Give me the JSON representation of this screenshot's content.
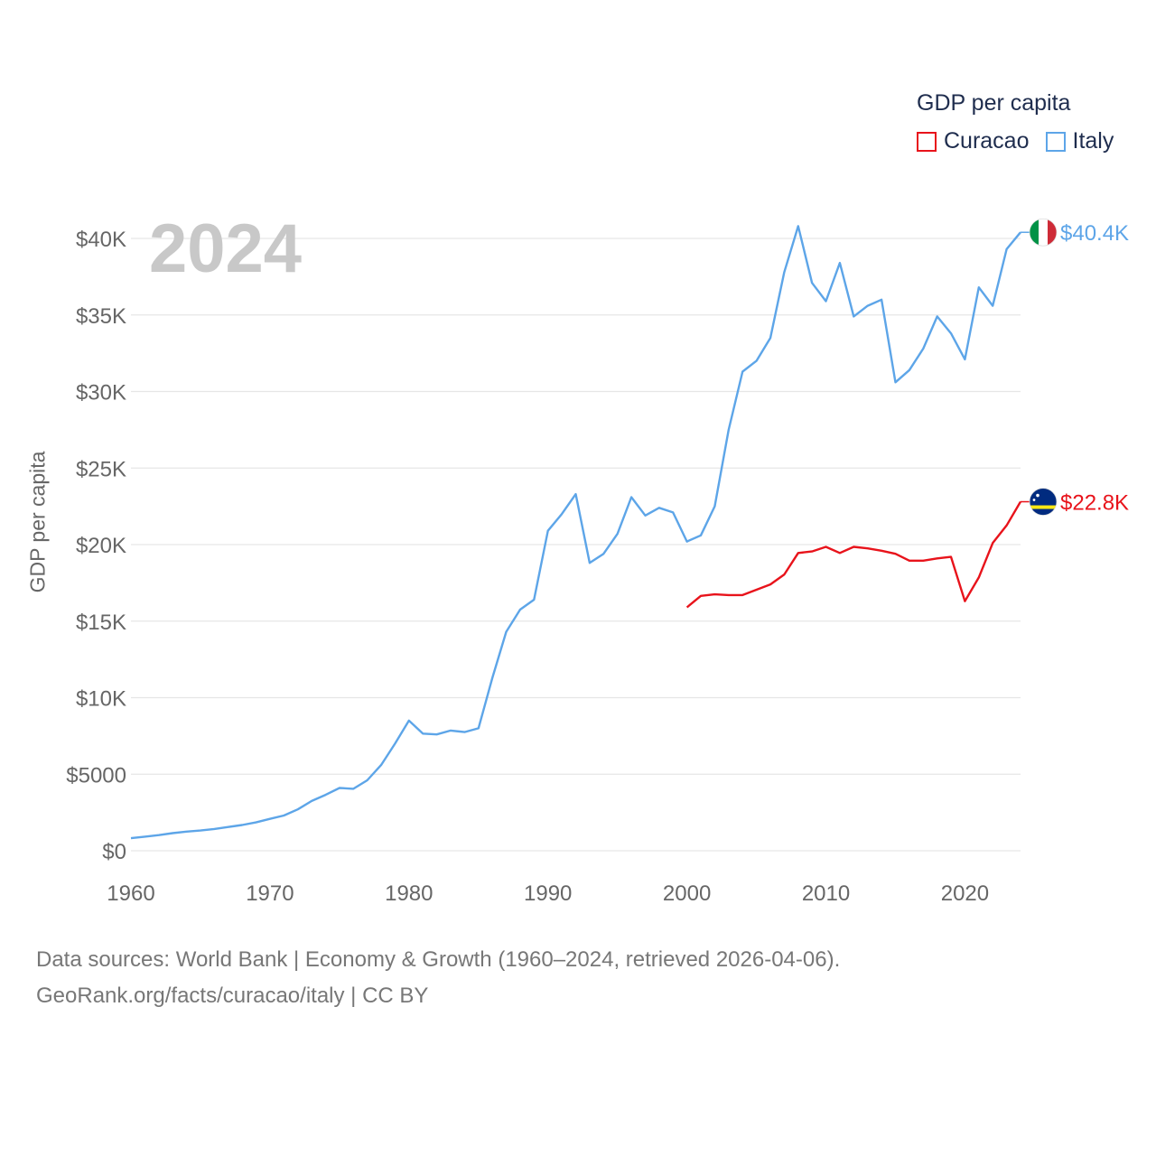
{
  "legend": {
    "title": "GDP per capita",
    "items": [
      {
        "label": "Curacao",
        "color": "#e8131b"
      },
      {
        "label": "Italy",
        "color": "#5da5e8"
      }
    ]
  },
  "year_display": "2024",
  "footer": {
    "line1": "Data sources: World Bank | Economy & Growth (1960–2024, retrieved 2026-04-06).",
    "line2": "GeoRank.org/facts/curacao/italy | CC BY"
  },
  "chart_data": {
    "type": "line",
    "title": "",
    "xlabel": "",
    "ylabel": "GDP per capita",
    "xlim": [
      1960,
      2024
    ],
    "ylim": [
      0,
      40000
    ],
    "x_ticks": [
      1960,
      1970,
      1980,
      1990,
      2000,
      2010,
      2020
    ],
    "x_tick_labels": [
      "1960",
      "1970",
      "1980",
      "1990",
      "2000",
      "2010",
      "2020"
    ],
    "y_ticks": [
      0,
      5000,
      10000,
      15000,
      20000,
      25000,
      30000,
      35000,
      40000
    ],
    "y_tick_labels": [
      "$0",
      "$5000",
      "$10K",
      "$15K",
      "$20K",
      "$25K",
      "$30K",
      "$35K",
      "$40K"
    ],
    "grid": true,
    "legend_position": "top-right",
    "series": [
      {
        "name": "Italy",
        "color": "#5da5e8",
        "end_label": "$40.4K",
        "end_value": 40400,
        "flag": "italy",
        "x": [
          1960,
          1961,
          1962,
          1963,
          1964,
          1965,
          1966,
          1967,
          1968,
          1969,
          1970,
          1971,
          1972,
          1973,
          1974,
          1975,
          1976,
          1977,
          1978,
          1979,
          1980,
          1981,
          1982,
          1983,
          1984,
          1985,
          1986,
          1987,
          1988,
          1989,
          1990,
          1991,
          1992,
          1993,
          1994,
          1995,
          1996,
          1997,
          1998,
          1999,
          2000,
          2001,
          2002,
          2003,
          2004,
          2005,
          2006,
          2007,
          2008,
          2009,
          2010,
          2011,
          2012,
          2013,
          2014,
          2015,
          2016,
          2017,
          2018,
          2019,
          2020,
          2021,
          2022,
          2023,
          2024
        ],
        "values": [
          820,
          920,
          1020,
          1150,
          1250,
          1320,
          1420,
          1550,
          1680,
          1850,
          2080,
          2300,
          2700,
          3250,
          3650,
          4100,
          4050,
          4600,
          5600,
          7000,
          8500,
          7650,
          7600,
          7850,
          7750,
          8000,
          11300,
          14300,
          15750,
          16400,
          20900,
          22000,
          23300,
          18800,
          19400,
          20700,
          23100,
          21900,
          22400,
          22100,
          20200,
          20600,
          22500,
          27500,
          31300,
          32000,
          33500,
          37800,
          40800,
          37100,
          35900,
          38400,
          34900,
          35600,
          36000,
          30600,
          31400,
          32800,
          34900,
          33800,
          32100,
          36800,
          35600,
          39300,
          40400
        ]
      },
      {
        "name": "Curacao",
        "color": "#e8131b",
        "end_label": "$22.8K",
        "end_value": 22800,
        "flag": "curacao",
        "x": [
          2000,
          2001,
          2002,
          2003,
          2004,
          2005,
          2006,
          2007,
          2008,
          2009,
          2010,
          2011,
          2012,
          2013,
          2014,
          2015,
          2016,
          2017,
          2018,
          2019,
          2020,
          2021,
          2022,
          2023,
          2024
        ],
        "values": [
          15900,
          16650,
          16750,
          16700,
          16700,
          17050,
          17400,
          18050,
          19450,
          19550,
          19850,
          19450,
          19850,
          19750,
          19600,
          19400,
          18950,
          18950,
          19100,
          19200,
          16300,
          17850,
          20100,
          21250,
          22800
        ]
      }
    ]
  }
}
